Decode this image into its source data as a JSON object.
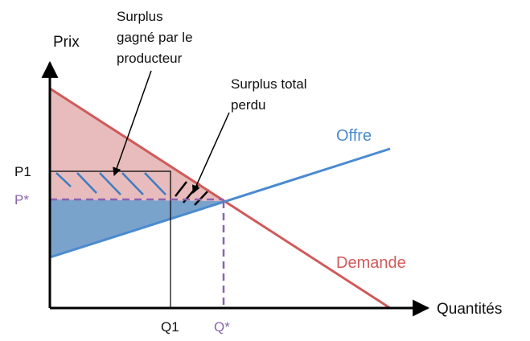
{
  "y_axis_label": "Prix",
  "x_axis_label": "Quantités",
  "supply_label": "Offre",
  "demand_label": "Demande",
  "price_labels": [
    "P1",
    "P*"
  ],
  "quantity_labels": [
    "Q1",
    "Q*"
  ],
  "annotations": [
    {
      "lines": [
        "Surplus",
        "gagné par le",
        "producteur"
      ]
    },
    {
      "lines": [
        "Surplus total",
        "perdu"
      ]
    }
  ]
}
